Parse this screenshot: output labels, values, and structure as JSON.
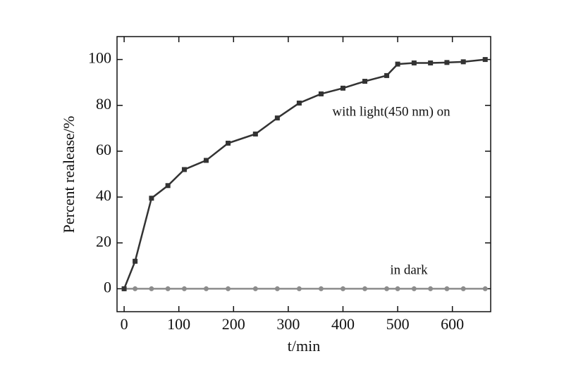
{
  "chart_data": {
    "type": "line",
    "xlabel": "t/min",
    "ylabel": "Percent realease/%",
    "annotations": [
      "with light(450 nm) on",
      "in dark"
    ],
    "x": [
      0,
      20,
      50,
      80,
      110,
      150,
      190,
      240,
      280,
      320,
      360,
      400,
      440,
      480,
      500,
      530,
      560,
      590,
      620,
      660
    ],
    "series": [
      {
        "name": "with light(450 nm) on",
        "color": "#333333",
        "marker": "square",
        "values": [
          0,
          12,
          39.5,
          45,
          52,
          56,
          63.5,
          67.5,
          74.5,
          81,
          85,
          87.5,
          90.5,
          93,
          98,
          98.5,
          98.5,
          98.7,
          99,
          100
        ]
      },
      {
        "name": "in dark",
        "color": "#8c8c8c",
        "marker": "circle",
        "values": [
          0,
          0,
          0,
          0,
          0,
          0,
          0,
          0,
          0,
          0,
          0,
          0,
          0,
          0,
          0,
          0,
          0,
          0,
          0,
          0
        ]
      }
    ],
    "xlim": [
      -13,
      670
    ],
    "ylim": [
      -10,
      110
    ],
    "xticks": [
      0,
      100,
      200,
      300,
      400,
      500,
      600
    ],
    "yticks": [
      0,
      20,
      40,
      60,
      80,
      100
    ]
  }
}
